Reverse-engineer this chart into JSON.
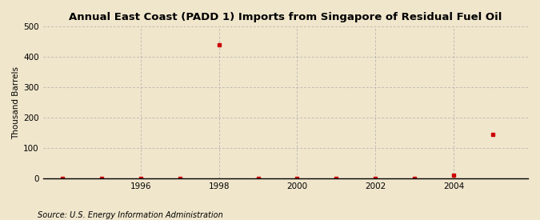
{
  "title": "Annual East Coast (PADD 1) Imports from Singapore of Residual Fuel Oil",
  "ylabel": "Thousand Barrels",
  "source": "Source: U.S. Energy Information Administration",
  "background_color": "#f0e6cc",
  "plot_bg_color": "#f0e6cc",
  "years": [
    1994,
    1995,
    1996,
    1997,
    1998,
    1999,
    2000,
    2001,
    2002,
    2003,
    2004,
    2005
  ],
  "values": [
    0,
    0,
    0,
    0,
    441,
    0,
    0,
    0,
    0,
    0,
    10,
    144
  ],
  "marker_color": "#cc0000",
  "xlim": [
    1993.5,
    2005.9
  ],
  "ylim": [
    0,
    500
  ],
  "yticks": [
    0,
    100,
    200,
    300,
    400,
    500
  ],
  "xticks": [
    1996,
    1998,
    2000,
    2002,
    2004
  ],
  "grid_color": "#aaaaaa",
  "title_fontsize": 9.5,
  "label_fontsize": 7.5,
  "tick_fontsize": 7.5,
  "source_fontsize": 7.0
}
